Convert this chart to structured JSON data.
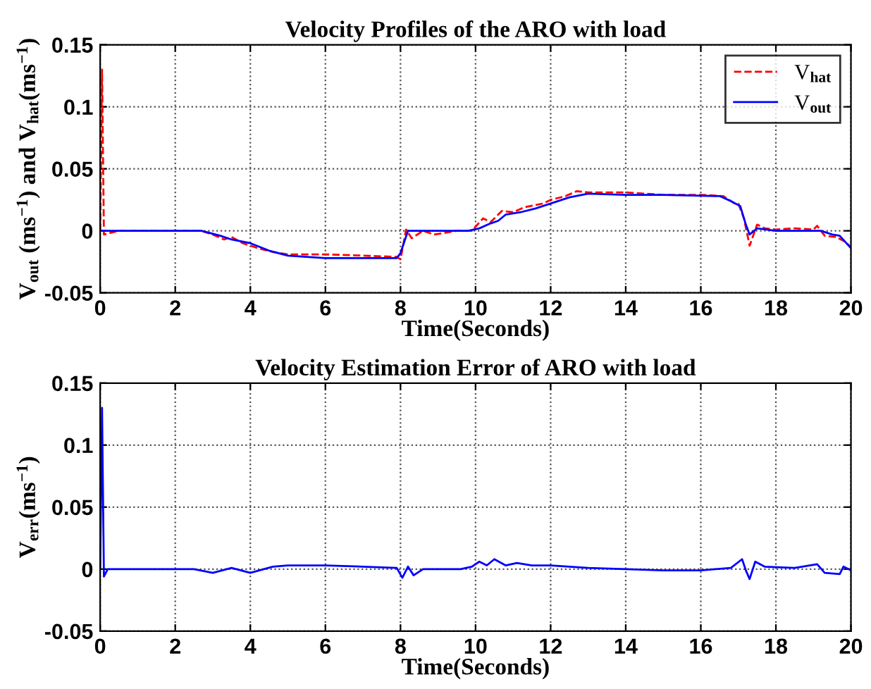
{
  "chart_data": [
    {
      "type": "line",
      "title": "Velocity Profiles of the ARO with load",
      "xlabel": "Time(Seconds)",
      "ylabel": "V$_{out}$ (ms$^{−1}$) and V$_{hat}$(ms$^{−1}$)",
      "xlim": [
        0,
        20
      ],
      "xticks": [
        0,
        2,
        4,
        6,
        8,
        10,
        12,
        14,
        16,
        18,
        20
      ],
      "ylim": [
        -0.05,
        0.15
      ],
      "yticks": [
        -0.05,
        0,
        0.05,
        0.1,
        0.15
      ],
      "grid": true,
      "legend": "top right",
      "series": [
        {
          "name": "V$_{hat}$",
          "color": "#ff0000",
          "line_style": "dashed",
          "x": [
            0,
            0.05,
            0.1,
            0.5,
            1.5,
            2.7,
            3.0,
            3.3,
            3.5,
            3.8,
            4.2,
            4.6,
            5.0,
            6.0,
            7.0,
            7.9,
            8.0,
            8.15,
            8.3,
            8.6,
            8.9,
            9.5,
            9.9,
            10.2,
            10.4,
            10.7,
            11.0,
            11.3,
            11.8,
            12.0,
            12.4,
            12.7,
            13.0,
            14.0,
            15.0,
            16.0,
            16.6,
            16.9,
            17.0,
            17.15,
            17.3,
            17.5,
            17.7,
            18.0,
            18.5,
            19.0,
            19.1,
            19.3,
            19.6,
            19.8,
            20.0
          ],
          "values": [
            0,
            0.13,
            -0.003,
            0,
            0,
            0,
            -0.003,
            -0.007,
            -0.005,
            -0.01,
            -0.014,
            -0.017,
            -0.019,
            -0.019,
            -0.02,
            -0.021,
            -0.023,
            0.001,
            -0.006,
            0,
            -0.003,
            0,
            0,
            0.01,
            0.007,
            0.016,
            0.015,
            0.019,
            0.022,
            0.025,
            0.028,
            0.032,
            0.031,
            0.031,
            0.029,
            0.029,
            0.028,
            0.022,
            0.022,
            0.01,
            -0.012,
            0.005,
            0.002,
            0.001,
            0.002,
            0.001,
            0.004,
            -0.004,
            -0.005,
            -0.008,
            -0.013
          ]
        },
        {
          "name": "V$_{out}$",
          "color": "#0000ff",
          "line_style": "solid",
          "x": [
            0,
            1.0,
            2.7,
            3.2,
            3.5,
            4.0,
            4.5,
            5.0,
            6.0,
            7.9,
            8.0,
            8.2,
            9.0,
            9.8,
            10.1,
            10.4,
            10.6,
            10.8,
            11.2,
            11.6,
            12.0,
            12.5,
            13.0,
            14.0,
            15.0,
            16.5,
            16.8,
            17.05,
            17.2,
            17.3,
            17.5,
            18.0,
            19.2,
            19.5,
            19.7,
            20.0
          ],
          "values": [
            0,
            0,
            0,
            -0.004,
            -0.007,
            -0.01,
            -0.016,
            -0.02,
            -0.022,
            -0.022,
            -0.018,
            0,
            0,
            0,
            0.002,
            0.006,
            0.008,
            0.013,
            0.015,
            0.018,
            0.022,
            0.027,
            0.03,
            0.029,
            0.029,
            0.028,
            0.024,
            0.02,
            0.005,
            -0.003,
            0.002,
            0,
            0,
            -0.003,
            -0.004,
            -0.014
          ]
        }
      ]
    },
    {
      "type": "line",
      "title": "Velocity Estimation Error of ARO with load",
      "xlabel": "Time(Seconds)",
      "ylabel": "V$_{err}$(ms$^{−1}$)",
      "xlim": [
        0,
        20
      ],
      "xticks": [
        0,
        2,
        4,
        6,
        8,
        10,
        12,
        14,
        16,
        18,
        20
      ],
      "ylim": [
        -0.05,
        0.15
      ],
      "yticks": [
        -0.05,
        0,
        0.05,
        0.1,
        0.15
      ],
      "grid": true,
      "series": [
        {
          "color": "#0000ff",
          "line_style": "solid",
          "x": [
            0,
            0.05,
            0.1,
            0.2,
            2.5,
            3.0,
            3.5,
            4.0,
            4.6,
            5.0,
            6.0,
            7.0,
            7.9,
            8.05,
            8.2,
            8.35,
            8.6,
            9.6,
            9.9,
            10.1,
            10.3,
            10.5,
            10.8,
            11.1,
            11.5,
            12.0,
            13.0,
            14.0,
            15.0,
            16.0,
            16.8,
            17.1,
            17.2,
            17.3,
            17.45,
            17.7,
            18.5,
            19.1,
            19.3,
            19.7,
            19.8,
            20.0
          ],
          "values": [
            0,
            0.13,
            -0.006,
            0,
            0,
            -0.003,
            0.001,
            -0.003,
            0.002,
            0.003,
            0.003,
            0.002,
            0.001,
            -0.007,
            0.002,
            -0.005,
            0,
            0,
            0.002,
            0.006,
            0.003,
            0.008,
            0.003,
            0.005,
            0.003,
            0.003,
            0.001,
            0,
            -0.001,
            -0.001,
            0.001,
            0.008,
            -0.001,
            -0.008,
            0.006,
            0.002,
            0.001,
            0.004,
            -0.003,
            -0.004,
            0.002,
            -0.001
          ]
        }
      ]
    }
  ]
}
